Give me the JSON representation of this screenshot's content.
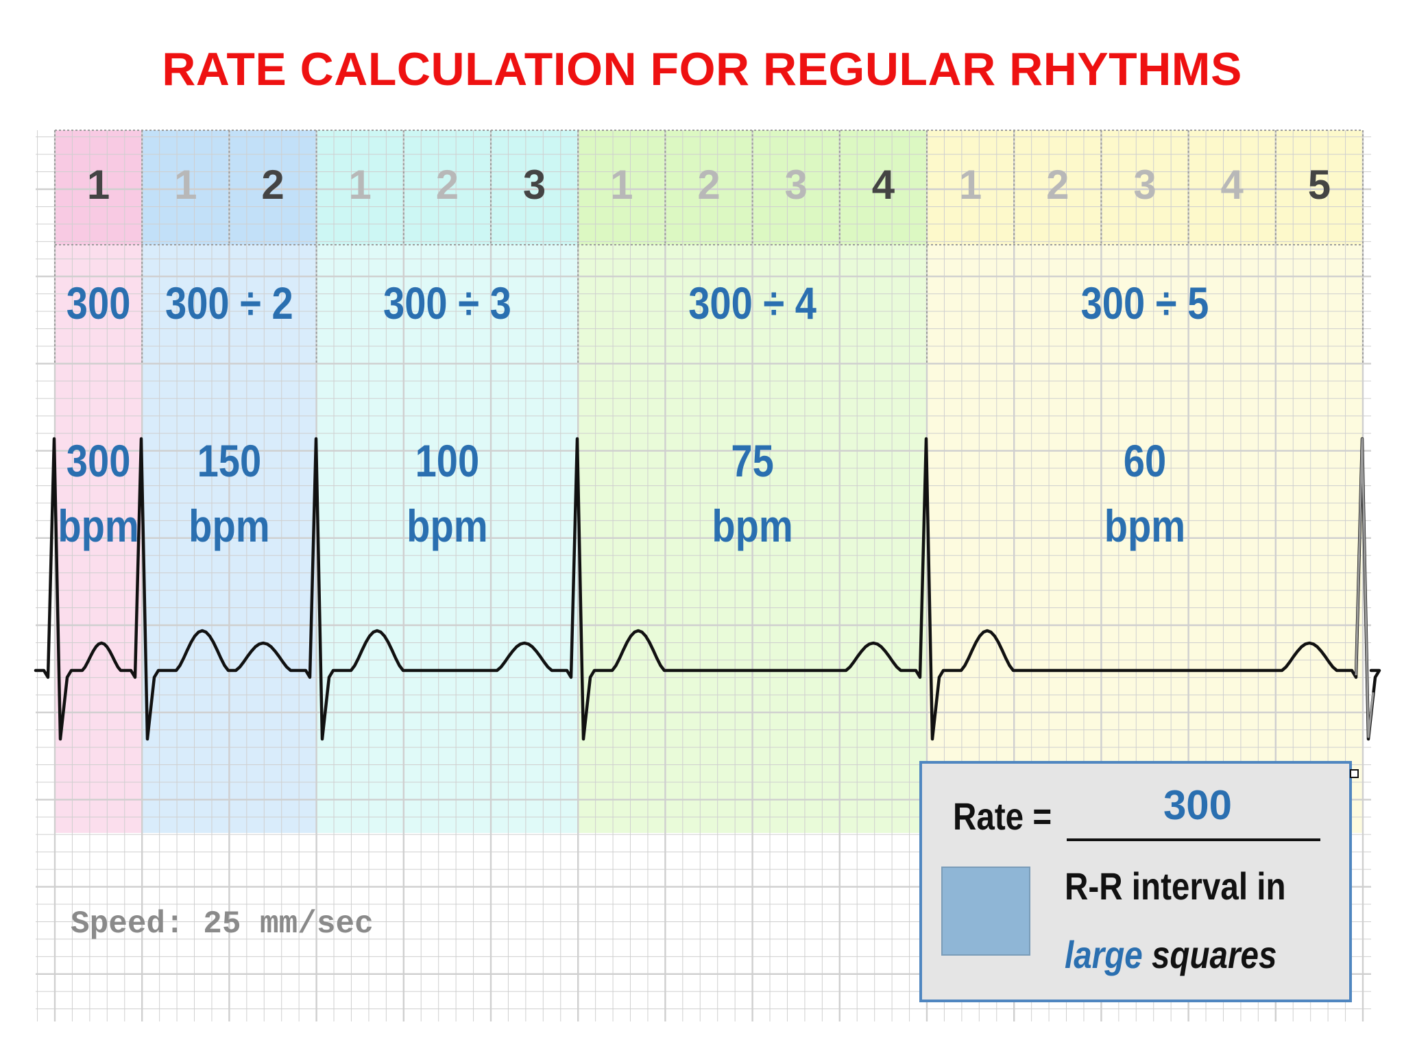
{
  "title": "RATE CALCULATION FOR REGULAR RHYTHMS",
  "colors": {
    "title": "#ee1111",
    "label_blue": "#2a6fb0",
    "grid_line": "#cfcfcf",
    "trace": "#111111",
    "zone_1": "#f7c3df",
    "zone_2": "#b9dcf7",
    "zone_3": "#c7f5f3",
    "zone_4": "#d7f7b9",
    "zone_5": "#fcf8c4",
    "legend_bg": "#e5e5e5",
    "legend_border": "#4f86c0",
    "legend_square": "#8fb6d6"
  },
  "zones": [
    {
      "squares": 1,
      "counts": [
        "1"
      ],
      "formula": "300",
      "rate": "300",
      "unit": "bpm"
    },
    {
      "squares": 2,
      "counts": [
        "1",
        "2"
      ],
      "formula": "300 ÷ 2",
      "rate": "150",
      "unit": "bpm"
    },
    {
      "squares": 3,
      "counts": [
        "1",
        "2",
        "3"
      ],
      "formula": "300 ÷ 3",
      "rate": "100",
      "unit": "bpm"
    },
    {
      "squares": 4,
      "counts": [
        "1",
        "2",
        "3",
        "4"
      ],
      "formula": "300 ÷ 4",
      "rate": "75",
      "unit": "bpm"
    },
    {
      "squares": 5,
      "counts": [
        "1",
        "2",
        "3",
        "4",
        "5"
      ],
      "formula": "300 ÷ 5",
      "rate": "60",
      "unit": "bpm"
    }
  ],
  "speed_label": "Speed: 25 mm/sec",
  "legend": {
    "rate_label": "Rate =",
    "numerator": "300",
    "denominator_line1": "R-R interval in",
    "denominator_italic_blue": "large",
    "denominator_italic_dark": "squares"
  }
}
